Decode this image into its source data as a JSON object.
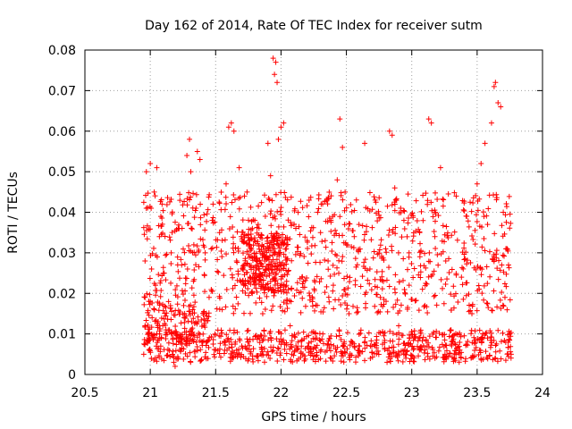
{
  "chart_data": {
    "type": "scatter",
    "title": "Day 162 of 2014, Rate Of TEC Index for receiver sutm",
    "xlabel": "GPS time / hours",
    "ylabel": "ROTI / TECUs",
    "xlim": [
      20.5,
      24
    ],
    "ylim": [
      0,
      0.08
    ],
    "xticks": [
      "20.5",
      "21",
      "21.5",
      "22",
      "22.5",
      "23",
      "23.5",
      "24"
    ],
    "yticks": [
      "0",
      "0.01",
      "0.02",
      "0.03",
      "0.04",
      "0.05",
      "0.06",
      "0.07",
      "0.08"
    ],
    "grid": true,
    "marker": "+",
    "color": "#ff0000",
    "series": [
      {
        "name": "ROTI",
        "x_range": [
          20.95,
          23.76
        ],
        "points": [
          [
            20.95,
            0.005
          ],
          [
            20.96,
            0.012
          ],
          [
            20.96,
            0.019
          ],
          [
            20.96,
            0.028
          ],
          [
            20.97,
            0.041
          ],
          [
            20.97,
            0.05
          ],
          [
            20.98,
            0.008
          ],
          [
            20.99,
            0.006
          ],
          [
            21.0,
            0.052
          ],
          [
            21.0,
            0.018
          ],
          [
            21.01,
            0.026
          ],
          [
            21.02,
            0.009
          ],
          [
            21.03,
            0.045
          ],
          [
            21.04,
            0.022
          ],
          [
            21.05,
            0.051
          ],
          [
            21.06,
            0.013
          ],
          [
            21.07,
            0.034
          ],
          [
            21.08,
            0.007
          ],
          [
            21.09,
            0.042
          ],
          [
            21.1,
            0.025
          ],
          [
            21.12,
            0.011
          ],
          [
            21.14,
            0.018
          ],
          [
            21.16,
            0.03
          ],
          [
            21.18,
            0.003
          ],
          [
            21.19,
            0.002
          ],
          [
            21.2,
            0.009
          ],
          [
            21.22,
            0.036
          ],
          [
            21.24,
            0.027
          ],
          [
            21.26,
            0.014
          ],
          [
            21.28,
            0.054
          ],
          [
            21.3,
            0.058
          ],
          [
            21.31,
            0.05
          ],
          [
            21.33,
            0.023
          ],
          [
            21.35,
            0.041
          ],
          [
            21.36,
            0.055
          ],
          [
            21.38,
            0.053
          ],
          [
            21.4,
            0.008
          ],
          [
            21.42,
            0.03
          ],
          [
            21.45,
            0.019
          ],
          [
            21.48,
            0.042
          ],
          [
            21.5,
            0.006
          ],
          [
            21.53,
            0.035
          ],
          [
            21.55,
            0.016
          ],
          [
            21.58,
            0.047
          ],
          [
            21.6,
            0.061
          ],
          [
            21.62,
            0.062
          ],
          [
            21.64,
            0.06
          ],
          [
            21.66,
            0.028
          ],
          [
            21.68,
            0.051
          ],
          [
            21.7,
            0.007
          ],
          [
            21.72,
            0.044
          ],
          [
            21.74,
            0.045
          ],
          [
            21.76,
            0.032
          ],
          [
            21.78,
            0.02
          ],
          [
            21.8,
            0.038
          ],
          [
            21.83,
            0.026
          ],
          [
            21.86,
            0.015
          ],
          [
            21.88,
            0.039
          ],
          [
            21.9,
            0.057
          ],
          [
            21.92,
            0.049
          ],
          [
            21.94,
            0.078
          ],
          [
            21.95,
            0.074
          ],
          [
            21.96,
            0.077
          ],
          [
            21.97,
            0.072
          ],
          [
            21.98,
            0.058
          ],
          [
            22.0,
            0.061
          ],
          [
            22.02,
            0.062
          ],
          [
            22.04,
            0.031
          ],
          [
            22.07,
            0.012
          ],
          [
            22.1,
            0.037
          ],
          [
            22.13,
            0.008
          ],
          [
            22.16,
            0.024
          ],
          [
            22.2,
            0.033
          ],
          [
            22.24,
            0.018
          ],
          [
            22.28,
            0.04
          ],
          [
            22.32,
            0.01
          ],
          [
            22.36,
            0.028
          ],
          [
            22.4,
            0.022
          ],
          [
            22.43,
            0.048
          ],
          [
            22.45,
            0.063
          ],
          [
            22.47,
            0.056
          ],
          [
            22.49,
            0.045
          ],
          [
            22.52,
            0.015
          ],
          [
            22.56,
            0.034
          ],
          [
            22.6,
            0.007
          ],
          [
            22.64,
            0.057
          ],
          [
            22.68,
            0.026
          ],
          [
            22.72,
            0.043
          ],
          [
            22.76,
            0.019
          ],
          [
            22.8,
            0.031
          ],
          [
            22.83,
            0.06
          ],
          [
            22.85,
            0.059
          ],
          [
            22.87,
            0.046
          ],
          [
            22.9,
            0.012
          ],
          [
            22.94,
            0.038
          ],
          [
            22.98,
            0.022
          ],
          [
            23.02,
            0.009
          ],
          [
            23.06,
            0.035
          ],
          [
            23.1,
            0.017
          ],
          [
            23.13,
            0.063
          ],
          [
            23.15,
            0.062
          ],
          [
            23.18,
            0.04
          ],
          [
            23.22,
            0.051
          ],
          [
            23.26,
            0.028
          ],
          [
            23.3,
            0.011
          ],
          [
            23.34,
            0.044
          ],
          [
            23.38,
            0.024
          ],
          [
            23.42,
            0.039
          ],
          [
            23.46,
            0.015
          ],
          [
            23.5,
            0.047
          ],
          [
            23.53,
            0.052
          ],
          [
            23.56,
            0.057
          ],
          [
            23.58,
            0.037
          ],
          [
            23.61,
            0.062
          ],
          [
            23.63,
            0.071
          ],
          [
            23.64,
            0.072
          ],
          [
            23.66,
            0.067
          ],
          [
            23.68,
            0.066
          ],
          [
            23.7,
            0.04
          ],
          [
            23.72,
            0.031
          ],
          [
            23.74,
            0.027
          ],
          [
            23.75,
            0.01
          ],
          [
            23.76,
            0.005
          ]
        ],
        "dense_bands": [
          {
            "y_range": [
              0.003,
              0.011
            ],
            "x_range": [
              20.95,
              23.76
            ],
            "count": 700
          },
          {
            "y_range": [
              0.008,
              0.016
            ],
            "x_range": [
              20.95,
              21.45
            ],
            "count": 120
          },
          {
            "y_range": [
              0.015,
              0.045
            ],
            "x_range": [
              20.95,
              23.76
            ],
            "count": 900
          },
          {
            "y_range": [
              0.02,
              0.035
            ],
            "x_range": [
              21.7,
              22.05
            ],
            "count": 250
          }
        ]
      }
    ]
  }
}
